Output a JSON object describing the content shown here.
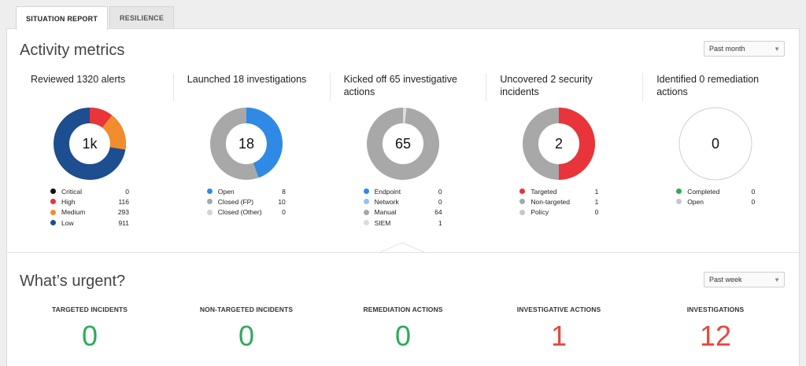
{
  "tabs": [
    {
      "label": "SITUATION REPORT",
      "active": true
    },
    {
      "label": "RESILIENCE",
      "active": false
    }
  ],
  "activity": {
    "title": "Activity metrics",
    "period": "Past month"
  },
  "metrics": [
    {
      "title": "Reviewed 1320 alerts",
      "center": "1k",
      "ring_color": "#1d4e8f",
      "legend": [
        {
          "label": "Critical",
          "value": "0",
          "color": "#111111"
        },
        {
          "label": "High",
          "value": "116",
          "color": "#e8343a"
        },
        {
          "label": "Medium",
          "value": "293",
          "color": "#f28c2c"
        },
        {
          "label": "Low",
          "value": "911",
          "color": "#1d4e8f"
        }
      ]
    },
    {
      "title": "Launched 18 investigations",
      "center": "18",
      "legend": [
        {
          "label": "Open",
          "value": "8",
          "color": "#2f8ae5"
        },
        {
          "label": "Closed (FP)",
          "value": "10",
          "color": "#a8a8a8"
        },
        {
          "label": "Closed (Other)",
          "value": "0",
          "color": "#d2d2d2"
        }
      ]
    },
    {
      "title": "Kicked off 65 investigative actions",
      "center": "65",
      "legend": [
        {
          "label": "Endpoint",
          "value": "0",
          "color": "#2f8ae5"
        },
        {
          "label": "Network",
          "value": "0",
          "color": "#8fc4f0"
        },
        {
          "label": "Manual",
          "value": "64",
          "color": "#a8a8a8"
        },
        {
          "label": "SIEM",
          "value": "1",
          "color": "#dddddd"
        }
      ]
    },
    {
      "title": "Uncovered 2 security incidents",
      "center": "2",
      "legend": [
        {
          "label": "Targeted",
          "value": "1",
          "color": "#e8343a"
        },
        {
          "label": "Non-targeted",
          "value": "1",
          "color": "#a8a8a8"
        },
        {
          "label": "Policy",
          "value": "0",
          "color": "#c8c8c8"
        }
      ]
    },
    {
      "title": "Identified 0 remediation actions",
      "center": "0",
      "legend": [
        {
          "label": "Completed",
          "value": "0",
          "color": "#2eaa5c"
        },
        {
          "label": "Open",
          "value": "0",
          "color": "#c8c8c8"
        }
      ]
    }
  ],
  "urgent": {
    "title": "What’s urgent?",
    "period": "Past week",
    "items": [
      {
        "label": "TARGETED INCIDENTS",
        "value": "0",
        "status": "green"
      },
      {
        "label": "NON-TARGETED INCIDENTS",
        "value": "0",
        "status": "green"
      },
      {
        "label": "REMEDIATION ACTIONS",
        "value": "0",
        "status": "green"
      },
      {
        "label": "INVESTIGATIVE ACTIONS",
        "value": "1",
        "status": "red"
      },
      {
        "label": "INVESTIGATIONS",
        "value": "12",
        "status": "red"
      }
    ]
  }
}
